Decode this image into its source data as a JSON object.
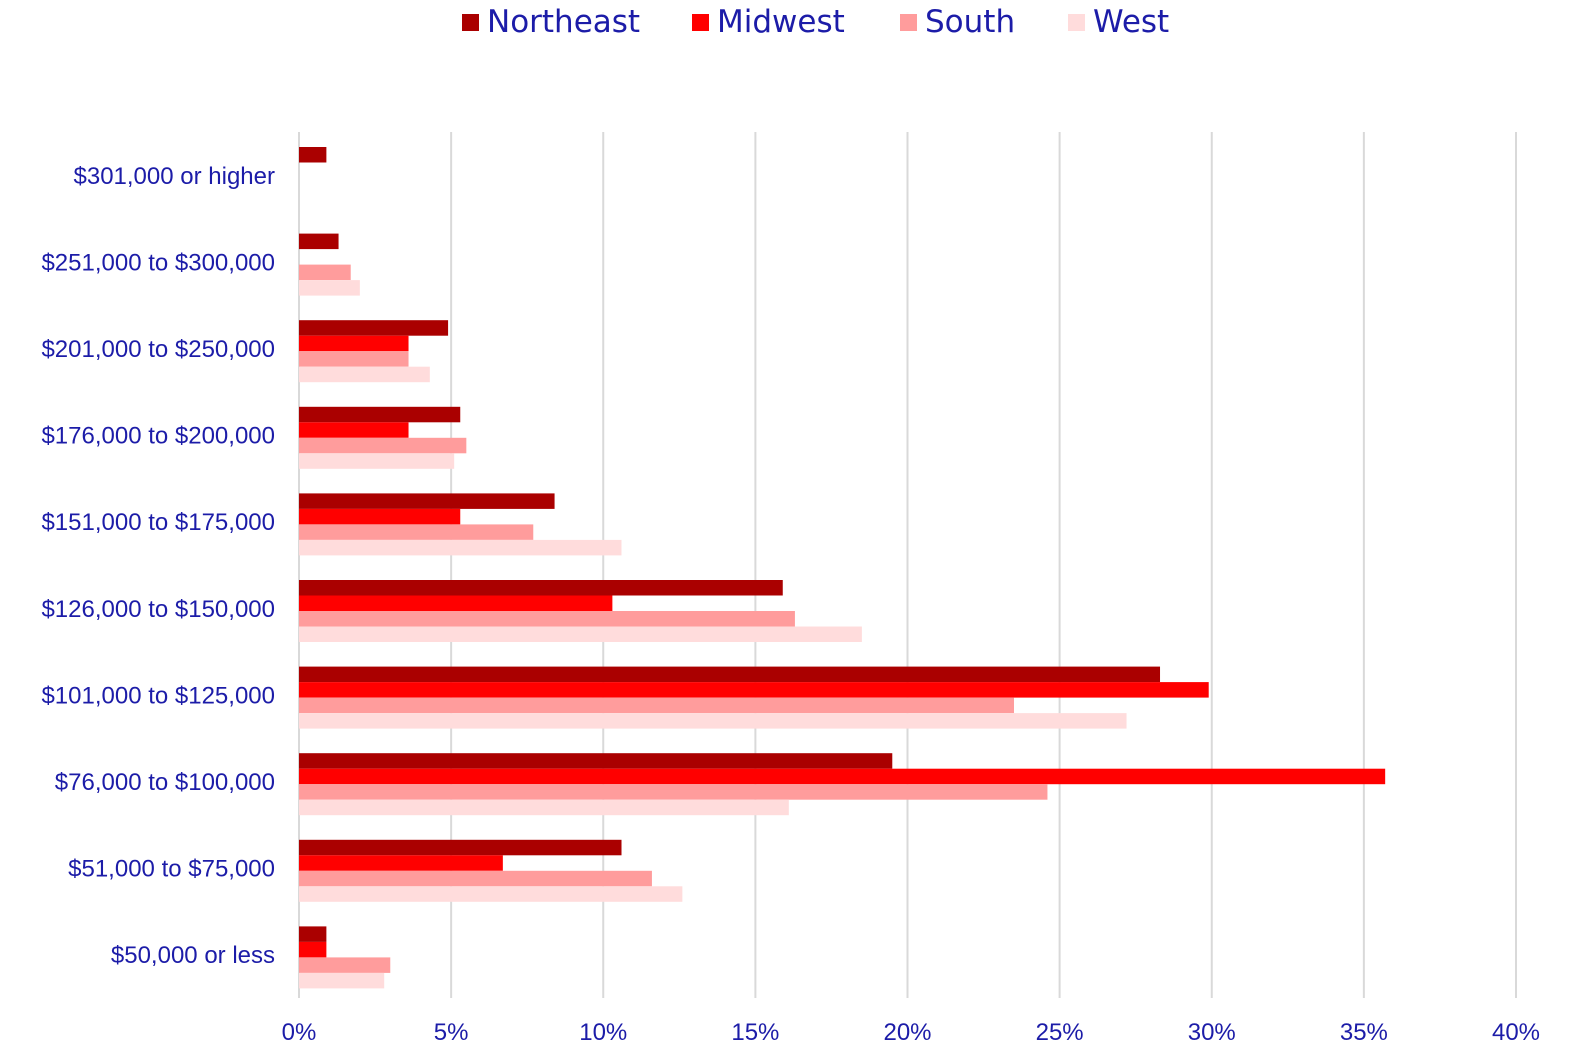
{
  "chart_data": {
    "type": "bar",
    "orientation": "horizontal",
    "categories": [
      "$301,000 or higher",
      "$251,000 to $300,000",
      "$201,000 to $250,000",
      "$176,000 to $200,000",
      "$151,000 to $175,000",
      "$126,000 to $150,000",
      "$101,000 to $125,000",
      "$76,000 to $100,000",
      "$51,000 to $75,000",
      "$50,000 or less"
    ],
    "series": [
      {
        "name": "Northeast",
        "color": "#aa0000",
        "values": [
          0.9,
          1.3,
          4.9,
          5.3,
          8.4,
          15.9,
          28.3,
          19.5,
          10.6,
          0.9
        ]
      },
      {
        "name": "Midwest",
        "color": "#ff0000",
        "values": [
          0,
          0,
          3.6,
          3.6,
          5.3,
          10.3,
          29.9,
          35.7,
          6.7,
          0.9
        ]
      },
      {
        "name": "South",
        "color": "#ff9c9c",
        "values": [
          0,
          1.7,
          3.6,
          5.5,
          7.7,
          16.3,
          23.5,
          24.6,
          11.6,
          3.0
        ]
      },
      {
        "name": "West",
        "color": "#ffdcdc",
        "values": [
          0,
          2.0,
          4.3,
          5.1,
          10.6,
          18.5,
          27.2,
          16.1,
          12.6,
          2.8
        ]
      }
    ],
    "xlim": [
      0,
      40
    ],
    "xticks": [
      0,
      5,
      10,
      15,
      20,
      25,
      30,
      35,
      40
    ],
    "xtick_labels": [
      "0%",
      "5%",
      "10%",
      "15%",
      "20%",
      "25%",
      "30%",
      "35%",
      "40%"
    ],
    "grid": "vertical",
    "legend_position": "top-center",
    "title": "",
    "xlabel": "",
    "ylabel": ""
  }
}
